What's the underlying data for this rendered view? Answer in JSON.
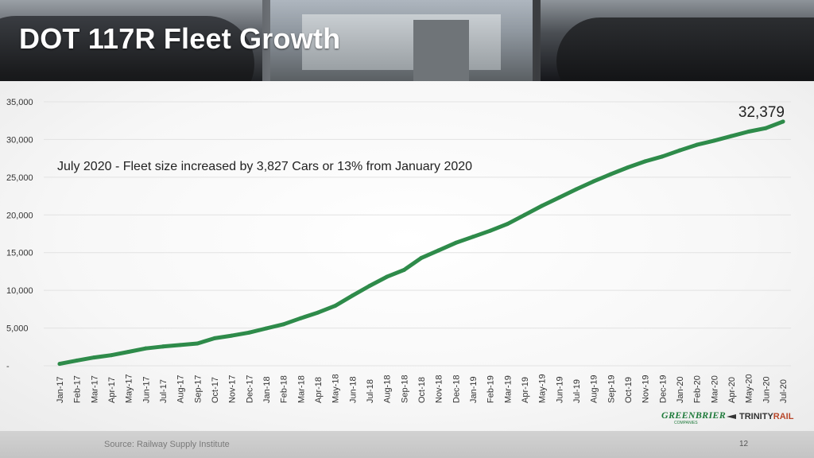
{
  "slide": {
    "title": "DOT 117R Fleet Growth",
    "source": "Source: Railway Supply Institute",
    "page_number": "12"
  },
  "logos": {
    "greenbrier": "GREENBRIER",
    "greenbrier_sub": "COMPANIES",
    "trinity": "TRINITY",
    "trinity_rail": "RAIL"
  },
  "colors": {
    "line": "#2e8b4a",
    "grid": "#e2e2e2",
    "label": "#333333"
  },
  "chart_data": {
    "type": "line",
    "title": "",
    "xlabel": "",
    "ylabel": "",
    "y_tick_labels": [
      "-",
      "5,000",
      "10,000",
      "15,000",
      "20,000",
      "25,000",
      "30,000",
      "35,000"
    ],
    "y_tick_values": [
      0,
      5000,
      10000,
      15000,
      20000,
      25000,
      30000,
      35000
    ],
    "ylim": [
      0,
      35000
    ],
    "grid": true,
    "legend": "none",
    "annotation": "July 2020 - Fleet size increased by 3,827 Cars or 13% from January 2020",
    "end_label": "32,379",
    "categories": [
      "Jan-17",
      "Feb-17",
      "Mar-17",
      "Apr-17",
      "May-17",
      "Jun-17",
      "Jul-17",
      "Aug-17",
      "Sep-17",
      "Oct-17",
      "Nov-17",
      "Dec-17",
      "Jan-18",
      "Feb-18",
      "Mar-18",
      "Apr-18",
      "May-18",
      "Jun-18",
      "Jul-18",
      "Aug-18",
      "Sep-18",
      "Oct-18",
      "Nov-18",
      "Dec-18",
      "Jan-19",
      "Feb-19",
      "Mar-19",
      "Apr-19",
      "May-19",
      "Jun-19",
      "Jul-19",
      "Aug-19",
      "Sep-19",
      "Oct-19",
      "Nov-19",
      "Dec-19",
      "Jan-20",
      "Feb-20",
      "Mar-20",
      "Apr-20",
      "May-20",
      "Jun-20",
      "Jul-20"
    ],
    "series": [
      {
        "values": [
          250,
          700,
          1100,
          1400,
          1850,
          2300,
          2550,
          2750,
          2950,
          3650,
          4000,
          4400,
          4950,
          5500,
          6300,
          7050,
          7950,
          9300,
          10600,
          11800,
          12700,
          14300,
          15300,
          16300,
          17100,
          17900,
          18800,
          20000,
          21200,
          22300,
          23400,
          24450,
          25400,
          26300,
          27100,
          27750,
          28550,
          29300,
          29850,
          30450,
          31050,
          31500,
          32379
        ]
      }
    ]
  }
}
